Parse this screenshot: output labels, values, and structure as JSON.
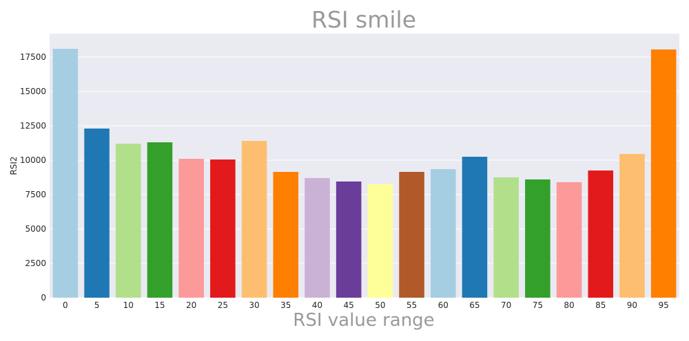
{
  "chart_data": {
    "type": "bar",
    "title": "RSI smile",
    "xlabel": "RSI value range",
    "ylabel": "RSI2",
    "ylim": [
      0,
      19200
    ],
    "yticks": [
      0,
      2500,
      5000,
      7500,
      10000,
      12500,
      15000,
      17500
    ],
    "grid": true,
    "legend": "none",
    "categories": [
      "0",
      "5",
      "10",
      "15",
      "20",
      "25",
      "30",
      "35",
      "40",
      "45",
      "50",
      "55",
      "60",
      "65",
      "70",
      "75",
      "80",
      "85",
      "90",
      "95"
    ],
    "values": [
      18100,
      12300,
      11200,
      11300,
      10100,
      10050,
      11400,
      9150,
      8700,
      8450,
      8250,
      9150,
      9350,
      10250,
      8750,
      8600,
      8400,
      9250,
      10450,
      18050
    ],
    "colors": [
      "#a6cee3",
      "#1f78b4",
      "#b2df8a",
      "#33a02c",
      "#fb9a99",
      "#e31a1c",
      "#fdbf6f",
      "#ff7f00",
      "#cab2d6",
      "#6a3d9a",
      "#ffff99",
      "#b15928",
      "#a6cee3",
      "#1f78b4",
      "#b2df8a",
      "#33a02c",
      "#fb9a99",
      "#e31a1c",
      "#fdbf6f",
      "#ff7f00"
    ],
    "plot_background": "#eaeaf2",
    "grid_color": "#ffffff"
  }
}
